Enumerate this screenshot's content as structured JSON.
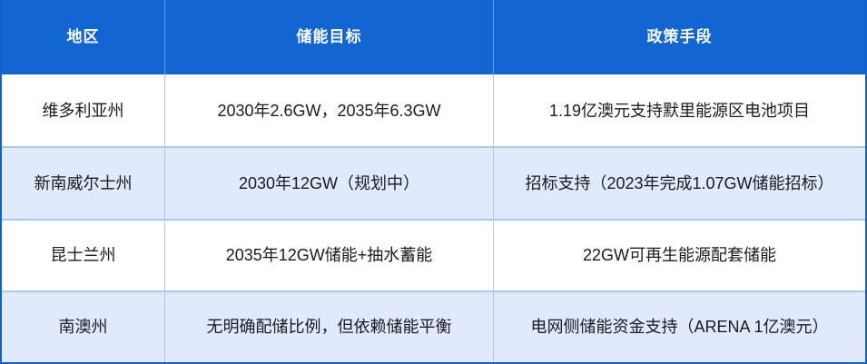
{
  "chart_data": {
    "type": "table",
    "title": "",
    "columns": [
      "地区",
      "储能目标",
      "政策手段"
    ],
    "rows": [
      [
        "维多利亚州",
        "2030年2.6GW，2035年6.3GW",
        "1.19亿澳元支持默里能源区电池项目"
      ],
      [
        "新南威尔士州",
        "2030年12GW（规划中）",
        "招标支持（2023年完成1.07GW储能招标）"
      ],
      [
        "昆士兰州",
        "2035年12GW储能+抽水蓄能",
        "22GW可再生能源配套储能"
      ],
      [
        "南澳州",
        "无明确配储比例，但依赖储能平衡",
        "电网侧储能资金支持（ARENA 1亿澳元）"
      ]
    ],
    "layout": {
      "header_position": "top",
      "alternating_rows": true,
      "text_align": "center"
    }
  },
  "colors": {
    "header_bg": "#1166d4",
    "header_text": "#ffffff",
    "row_alt_bg": "#dfeafc",
    "row_bg": "#ffffff",
    "outer_border": "#1261c9",
    "separator": "#a9c9f1",
    "body_text": "#1b1b1b"
  }
}
